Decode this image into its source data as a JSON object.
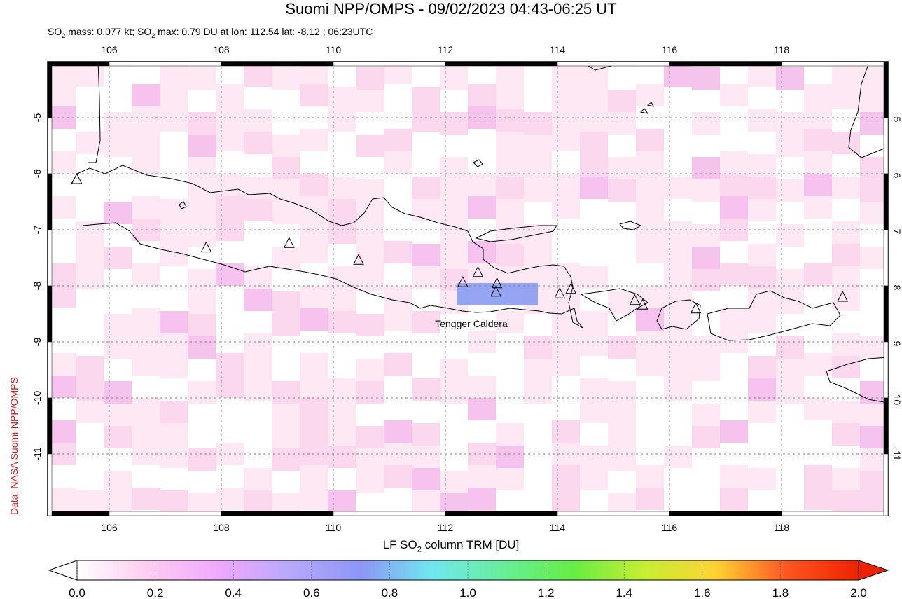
{
  "header": {
    "title": "Suomi NPP/OMPS - 09/02/2023 04:43-06:25 UT",
    "subtitle_part1": "SO",
    "subtitle_sub": "2",
    "subtitle_part2": " mass: 0.077 kt; SO",
    "subtitle_sub2": "2",
    "subtitle_part3": " max: 0.79 DU at lon: 112.54 lat: -8.12 ; 06:23UTC"
  },
  "credit": "Data: NASA Suomi-NPP/OMPS",
  "map": {
    "lon_ticks": [
      "106",
      "108",
      "110",
      "112",
      "114",
      "116",
      "118"
    ],
    "lat_ticks": [
      "-5",
      "-6",
      "-7",
      "-8",
      "-9",
      "-10",
      "-11"
    ],
    "lon_range": [
      104.9,
      119.9
    ],
    "lat_range": [
      -12.1,
      -4.0
    ],
    "grid": true,
    "volcano_label": "Tengger Caldera",
    "volcanoes": [
      {
        "lon": 105.42,
        "lat": -6.1
      },
      {
        "lon": 107.73,
        "lat": -7.32
      },
      {
        "lon": 109.21,
        "lat": -7.24
      },
      {
        "lon": 110.45,
        "lat": -7.54
      },
      {
        "lon": 112.31,
        "lat": -7.94
      },
      {
        "lon": 112.58,
        "lat": -7.76
      },
      {
        "lon": 112.92,
        "lat": -7.96
      },
      {
        "lon": 112.9,
        "lat": -8.11
      },
      {
        "lon": 114.04,
        "lat": -8.14
      },
      {
        "lon": 114.24,
        "lat": -8.06
      },
      {
        "lon": 115.38,
        "lat": -8.26
      },
      {
        "lon": 115.52,
        "lat": -8.34
      },
      {
        "lon": 116.47,
        "lat": -8.41
      },
      {
        "lon": 119.09,
        "lat": -8.2
      }
    ],
    "so2_plume": {
      "lon_min": 112.2,
      "lon_max": 113.65,
      "lat_min": -8.35,
      "lat_max": -7.95,
      "color": "#8fa0f0"
    }
  },
  "colorbar": {
    "label_part1": "LF SO",
    "label_sub": "2",
    "label_part2": " column TRM [DU]",
    "ticks": [
      "0.0",
      "0.2",
      "0.4",
      "0.6",
      "0.8",
      "1.0",
      "1.2",
      "1.4",
      "1.6",
      "1.8",
      "2.0"
    ],
    "range": [
      0.0,
      2.0
    ],
    "colors": [
      "#ffffff",
      "#ffccf2",
      "#f0a8ff",
      "#b8a8ff",
      "#8c96f5",
      "#6fe8f0",
      "#66ee99",
      "#66ee44",
      "#c8ee33",
      "#ffd233",
      "#ff5522",
      "#ee2200"
    ]
  }
}
